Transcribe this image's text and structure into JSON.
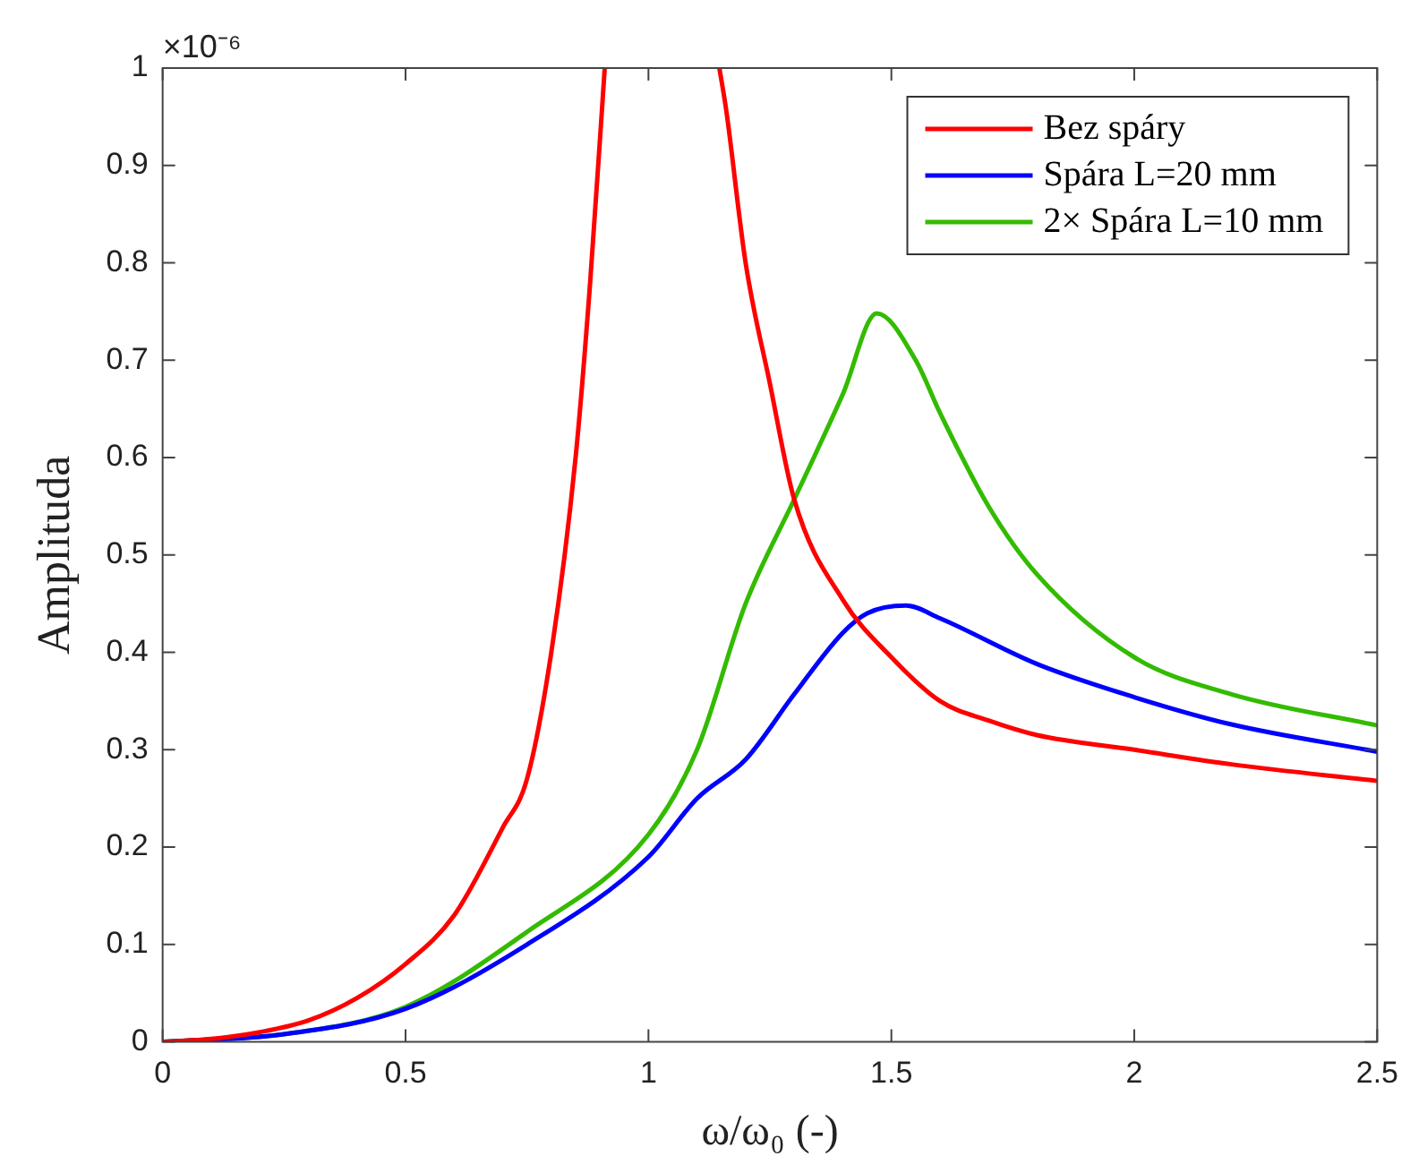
{
  "chart_data": {
    "type": "line",
    "xlabel": "ω/ω₀ (-)",
    "ylabel": "Amplituda",
    "annotations": [
      "×10⁻⁶"
    ],
    "xlim": [
      0,
      2.5
    ],
    "xticks": [
      0,
      0.5,
      1,
      1.5,
      2,
      2.5
    ],
    "ylim": [
      0,
      1
    ],
    "yticks": [
      0,
      0.1,
      0.2,
      0.3,
      0.4,
      0.5,
      0.6,
      0.7,
      0.8,
      0.9,
      1
    ],
    "grid": false,
    "legend": "top right",
    "marker": "none",
    "line_style": "solid",
    "series": [
      {
        "name": "Bez spáry",
        "color": "#ff0000",
        "x": [
          0,
          0.1,
          0.2,
          0.3,
          0.4,
          0.5,
          0.6,
          0.7,
          0.75,
          0.8,
          0.85,
          0.88,
          0.91,
          1.0,
          1.146,
          1.16,
          1.2,
          1.25,
          1.3,
          1.4,
          1.5,
          1.6,
          1.7,
          1.8,
          2.0,
          2.2,
          2.5
        ],
        "values": [
          0,
          0.003,
          0.01,
          0.022,
          0.045,
          0.08,
          0.13,
          0.22,
          0.27,
          0.4,
          0.6,
          0.78,
          1.0,
          null,
          1.0,
          0.957,
          0.8,
          0.676,
          0.557,
          0.454,
          0.395,
          0.35,
          0.33,
          0.315,
          0.3,
          0.285,
          0.268
        ]
      },
      {
        "name": "Spára L=20 mm",
        "color": "#0000ff",
        "x": [
          0,
          0.25,
          0.5,
          0.75,
          1.0,
          1.1,
          1.2,
          1.3,
          1.4,
          1.45,
          1.53,
          1.6,
          1.8,
          2.0,
          2.2,
          2.5
        ],
        "values": [
          0,
          0.008,
          0.034,
          0.1,
          0.19,
          0.25,
          0.29,
          0.357,
          0.42,
          0.44,
          0.448,
          0.435,
          0.388,
          0.354,
          0.326,
          0.298
        ]
      },
      {
        "name": "2× Spára L=10 mm",
        "color": "#33bb00",
        "x": [
          0,
          0.25,
          0.5,
          0.75,
          1.0,
          1.1,
          1.2,
          1.3,
          1.4,
          1.47,
          1.55,
          1.6,
          1.7,
          1.8,
          2.0,
          2.2,
          2.5
        ],
        "values": [
          0,
          0.008,
          0.036,
          0.113,
          0.213,
          0.3,
          0.45,
          0.557,
          0.665,
          0.748,
          0.7,
          0.646,
          0.55,
          0.48,
          0.395,
          0.357,
          0.325
        ]
      }
    ]
  }
}
